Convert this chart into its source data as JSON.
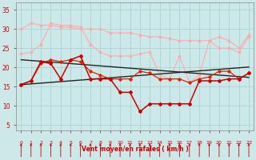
{
  "x": [
    0,
    1,
    2,
    3,
    4,
    5,
    6,
    7,
    8,
    9,
    10,
    11,
    12,
    13,
    14,
    15,
    16,
    17,
    18,
    19,
    20,
    21,
    22,
    23
  ],
  "line_dark_red": [
    15.5,
    16.5,
    21.5,
    21,
    17,
    22,
    23,
    17,
    17,
    17,
    13.5,
    13.5,
    8.5,
    10.5,
    10.5,
    10.5,
    10.5,
    10.5,
    16.5,
    16.5,
    16.5,
    17,
    17,
    18.5
  ],
  "line_med_red": [
    15.5,
    16.5,
    21,
    22,
    21.5,
    22,
    21.5,
    19,
    18,
    17,
    17,
    17,
    19,
    18.5,
    17,
    17,
    17,
    16,
    17,
    17.5,
    19,
    19,
    17,
    18.5
  ],
  "line_trend_high": [
    22,
    21.8,
    21.6,
    21.4,
    21.2,
    21.0,
    20.8,
    20.6,
    20.4,
    20.2,
    20.0,
    19.8,
    19.6,
    19.4,
    19.2,
    19.0,
    18.8,
    18.6,
    18.4,
    18.2,
    18.0,
    17.8,
    17.6,
    17.4
  ],
  "line_trend_low": [
    15.5,
    15.7,
    15.9,
    16.1,
    16.3,
    16.5,
    16.7,
    16.9,
    17.1,
    17.3,
    17.5,
    17.7,
    17.9,
    18.1,
    18.3,
    18.5,
    18.7,
    18.9,
    19.1,
    19.3,
    19.5,
    19.7,
    19.9,
    20.1
  ],
  "line_light1": [
    23.5,
    24,
    26,
    31.5,
    31,
    31,
    30.5,
    26,
    24,
    23,
    23,
    23,
    23.5,
    24,
    18,
    17,
    23,
    16,
    18,
    27,
    25,
    25,
    24,
    28
  ],
  "line_light2": [
    30,
    31.5,
    31,
    31,
    30.5,
    30.5,
    30,
    30,
    30,
    29,
    29,
    29,
    28.5,
    28,
    28,
    27.5,
    27,
    27,
    27,
    27,
    28,
    27,
    25,
    28.5
  ],
  "background_color": "#cce8e8",
  "grid_color": "#aad4d4",
  "xlabel": "Vent moyen/en rafales ( km/h )",
  "ylabel_ticks": [
    5,
    10,
    15,
    20,
    25,
    30,
    35
  ],
  "xlim": [
    -0.5,
    23.5
  ],
  "ylim": [
    3.5,
    37
  ],
  "label_color": "#cc0000",
  "color_dark_red": "#cc0000",
  "color_med_red": "#dd2200",
  "color_trend": "#222222",
  "color_light": "#ffaaaa"
}
